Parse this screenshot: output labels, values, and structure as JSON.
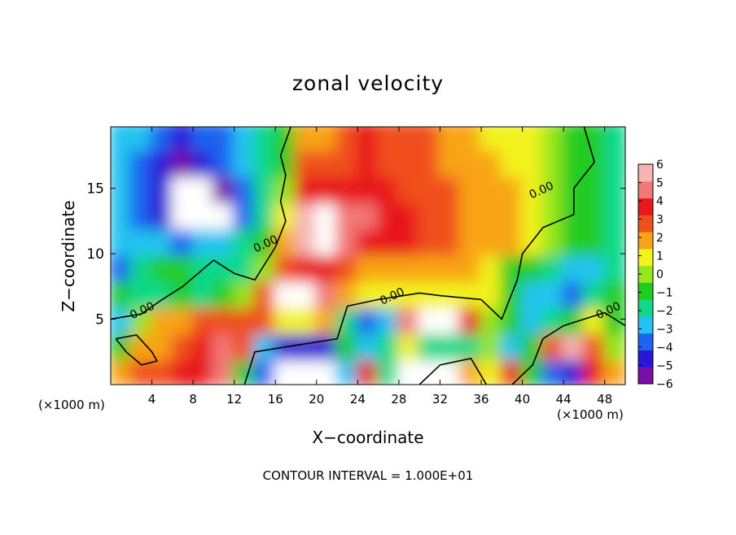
{
  "chart_data": {
    "type": "heatmap",
    "title": "zonal velocity",
    "xlabel": "X−coordinate",
    "ylabel": "Z−coordinate",
    "x_unit_label": "(×1000 m)",
    "footer": "CONTOUR INTERVAL = 1.000E+01",
    "xlim": [
      0,
      50
    ],
    "ylim": [
      0,
      19.7
    ],
    "x_ticks": [
      4,
      8,
      12,
      16,
      20,
      24,
      28,
      32,
      36,
      40,
      44,
      48
    ],
    "y_ticks": [
      5,
      10,
      15
    ],
    "colorbar": {
      "min": -6,
      "max": 6,
      "ticks": [
        6,
        5,
        4,
        3,
        2,
        1,
        0,
        -1,
        -2,
        -3,
        -4,
        -5,
        -6
      ],
      "tick_labels": [
        "6",
        "5",
        "4",
        "3",
        "2",
        "1",
        "0",
        "−1",
        "−2",
        "−3",
        "−4",
        "−5",
        "−6"
      ],
      "colors": [
        "#7a0fa8",
        "#2a16d6",
        "#1e64f0",
        "#22c3f0",
        "#10d88a",
        "#20cc20",
        "#96e61e",
        "#f2f21c",
        "#f8a418",
        "#f0501e",
        "#e8181e",
        "#f27878",
        "#f6b4b4"
      ]
    },
    "contour_label": "0.00",
    "out_of_range_color": "#ffffff",
    "cells_x": [
      1,
      3,
      5,
      7,
      9,
      11,
      13,
      15,
      17,
      19,
      21,
      23,
      25,
      27,
      29,
      31,
      33,
      35,
      37,
      39,
      41,
      43,
      45,
      47,
      49
    ],
    "cells_z": [
      1,
      3,
      5,
      7,
      9,
      11,
      13,
      15,
      17,
      19
    ],
    "values": [
      [
        1.5,
        3.0,
        2.5,
        4.0,
        3.5,
        4.5,
        -0.5,
        -4.0,
        -6.5,
        -6.5,
        -6.5,
        -3.0,
        3.5,
        -1.5,
        -6.5,
        -6.5,
        -6.5,
        2.0,
        1.0,
        3.5,
        -1.0,
        -3.5,
        -5.0,
        4.0,
        1.5
      ],
      [
        -0.5,
        1.5,
        2.0,
        3.0,
        4.0,
        4.5,
        3.0,
        -3.0,
        -5.0,
        -5.0,
        -4.5,
        -1.0,
        -3.0,
        -1.5,
        1.0,
        -2.0,
        -2.0,
        -2.0,
        0.0,
        -2.5,
        -0.5,
        3.0,
        5.5,
        3.0,
        0.0
      ],
      [
        -2.5,
        0.0,
        1.5,
        1.5,
        2.5,
        3.0,
        3.0,
        2.5,
        1.0,
        1.0,
        1.5,
        -2.0,
        -3.5,
        -2.5,
        4.5,
        6.5,
        6.5,
        4.0,
        0.0,
        -1.0,
        -2.5,
        -2.0,
        -1.0,
        1.0,
        -0.5
      ],
      [
        -1.0,
        -2.0,
        -1.5,
        -0.5,
        -1.5,
        -1.0,
        0.0,
        3.0,
        6.5,
        6.5,
        5.0,
        1.5,
        0.5,
        0.5,
        1.0,
        0.5,
        0.5,
        0.5,
        0.5,
        -1.0,
        -2.5,
        -2.5,
        -3.5,
        -2.0,
        -1.0
      ],
      [
        -3.5,
        -2.0,
        -1.0,
        -1.0,
        -1.5,
        -2.0,
        -1.5,
        0.0,
        2.5,
        3.5,
        3.5,
        2.5,
        2.0,
        2.0,
        2.0,
        2.0,
        2.0,
        1.5,
        0.5,
        -0.5,
        -1.0,
        -2.0,
        -3.0,
        -2.5,
        -1.5
      ],
      [
        -2.5,
        -3.0,
        -3.0,
        -3.5,
        -2.5,
        -2.5,
        -2.0,
        -1.0,
        2.0,
        5.5,
        6.5,
        4.5,
        4.0,
        3.5,
        3.5,
        3.0,
        2.5,
        2.0,
        2.0,
        1.5,
        1.0,
        0.0,
        -0.5,
        -1.0,
        -1.5
      ],
      [
        -3.0,
        -4.0,
        -4.5,
        -6.5,
        -6.5,
        -6.5,
        -3.5,
        -2.0,
        0.5,
        5.5,
        6.5,
        5.0,
        4.5,
        4.0,
        3.5,
        3.0,
        2.5,
        2.0,
        1.5,
        1.5,
        1.0,
        0.0,
        -0.5,
        -1.0,
        -1.5
      ],
      [
        -2.5,
        -4.0,
        -5.0,
        -6.5,
        -6.5,
        -6.0,
        -3.5,
        -2.0,
        0.0,
        3.5,
        4.0,
        4.0,
        3.5,
        3.5,
        3.0,
        3.0,
        2.5,
        2.0,
        1.5,
        1.5,
        1.0,
        0.0,
        -0.5,
        -1.0,
        -1.5
      ],
      [
        -2.5,
        -3.5,
        -5.0,
        -5.5,
        -5.0,
        -4.0,
        -3.0,
        -2.0,
        -0.5,
        2.5,
        3.0,
        3.0,
        3.5,
        3.0,
        3.0,
        2.5,
        2.0,
        2.0,
        1.5,
        1.0,
        0.5,
        0.0,
        -0.5,
        -1.0,
        -1.5
      ],
      [
        -2.5,
        -3.0,
        -4.0,
        -4.5,
        -4.0,
        -3.5,
        -2.5,
        -2.0,
        -0.5,
        1.5,
        2.0,
        2.5,
        3.5,
        3.0,
        3.0,
        2.5,
        2.0,
        1.5,
        1.0,
        1.0,
        0.5,
        0.0,
        -0.5,
        -1.0,
        -1.5
      ]
    ],
    "contours": [
      [
        [
          0,
          5
        ],
        [
          3,
          5.4
        ],
        [
          5,
          6.5
        ],
        [
          7,
          7.5
        ],
        [
          10,
          9.5
        ],
        [
          12,
          8.5
        ],
        [
          14,
          8.0
        ],
        [
          16,
          10.5
        ],
        [
          17,
          12.5
        ],
        [
          16.5,
          14
        ],
        [
          17,
          16
        ],
        [
          16.5,
          17.5
        ],
        [
          17.5,
          19.7
        ]
      ],
      [
        [
          13,
          0
        ],
        [
          14,
          2.5
        ],
        [
          18,
          3
        ],
        [
          22,
          3.5
        ],
        [
          23,
          6
        ],
        [
          26,
          6.5
        ],
        [
          30,
          7
        ],
        [
          32,
          6.8
        ],
        [
          36,
          6.5
        ],
        [
          38,
          5
        ],
        [
          39.5,
          8
        ],
        [
          40,
          10
        ],
        [
          42,
          12
        ],
        [
          45,
          13
        ],
        [
          45,
          15
        ],
        [
          47,
          17
        ],
        [
          46,
          19.7
        ]
      ],
      [
        [
          0.5,
          3.5
        ],
        [
          2.5,
          3.8
        ],
        [
          4,
          2.5
        ],
        [
          4.5,
          1.8
        ],
        [
          3,
          1.5
        ],
        [
          1.5,
          2.5
        ],
        [
          0.5,
          3.5
        ]
      ],
      [
        [
          39,
          0
        ],
        [
          41,
          1.5
        ],
        [
          42,
          3.5
        ],
        [
          44,
          4.5
        ],
        [
          46,
          5
        ],
        [
          48,
          5.5
        ],
        [
          50,
          4.5
        ]
      ],
      [
        [
          30,
          0
        ],
        [
          32,
          1.5
        ],
        [
          35,
          2
        ],
        [
          36.5,
          0
        ]
      ]
    ]
  }
}
